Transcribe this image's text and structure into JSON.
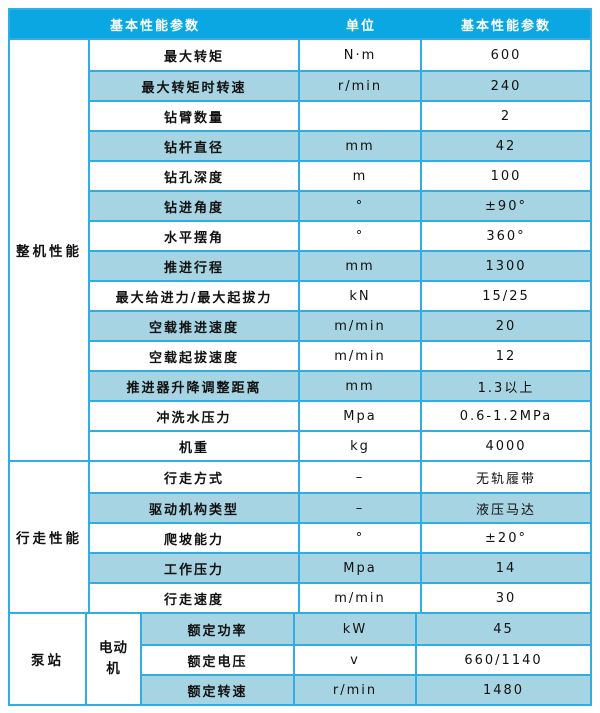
{
  "table": {
    "colors": {
      "header_bg": "#0ba7e3",
      "alt_row_bg": "#a7d4e2",
      "border": "#2fade4",
      "header_text": "#ffffff",
      "body_text": "#111111"
    },
    "header": {
      "param_label": "基本性能参数",
      "unit_label": "单位",
      "value_label": "基本性能参数"
    },
    "sections": [
      {
        "group": "整机性能",
        "rows": [
          {
            "name": "最大转矩",
            "unit": "N·m",
            "value": "600"
          },
          {
            "name": "最大转矩时转速",
            "unit": "r/min",
            "value": "240"
          },
          {
            "name": "钻臂数量",
            "unit": "",
            "value": "2"
          },
          {
            "name": "钻杆直径",
            "unit": "mm",
            "value": "42"
          },
          {
            "name": "钻孔深度",
            "unit": "m",
            "value": "100"
          },
          {
            "name": "钻进角度",
            "unit": "°",
            "value": "±90°"
          },
          {
            "name": "水平摆角",
            "unit": "°",
            "value": "360°"
          },
          {
            "name": "推进行程",
            "unit": "mm",
            "value": "1300"
          },
          {
            "name": "最大给进力/最大起拔力",
            "unit": "kN",
            "value": "15/25"
          },
          {
            "name": "空载推进速度",
            "unit": "m/min",
            "value": "20"
          },
          {
            "name": "空载起拔速度",
            "unit": "m/min",
            "value": "12"
          },
          {
            "name": "推进器升降调整距离",
            "unit": "mm",
            "value": "1.3以上"
          },
          {
            "name": "冲洗水压力",
            "unit": "Mpa",
            "value": "0.6-1.2MPa"
          },
          {
            "name": "机重",
            "unit": "kg",
            "value": "4000"
          }
        ]
      },
      {
        "group": "行走性能",
        "rows": [
          {
            "name": "行走方式",
            "unit": "–",
            "value": "无轨履带"
          },
          {
            "name": "驱动机构类型",
            "unit": "–",
            "value": "液压马达"
          },
          {
            "name": "爬坡能力",
            "unit": "°",
            "value": "±20°"
          },
          {
            "name": "工作压力",
            "unit": "Mpa",
            "value": "14"
          },
          {
            "name": "行走速度",
            "unit": "m/min",
            "value": "30"
          }
        ]
      },
      {
        "group": "泵站",
        "subgroup": "电动机",
        "rows": [
          {
            "name": "额定功率",
            "unit": "kW",
            "value": "45"
          },
          {
            "name": "额定电压",
            "unit": "v",
            "value": "660/1140"
          },
          {
            "name": "额定转速",
            "unit": "r/min",
            "value": "1480"
          }
        ]
      }
    ]
  }
}
